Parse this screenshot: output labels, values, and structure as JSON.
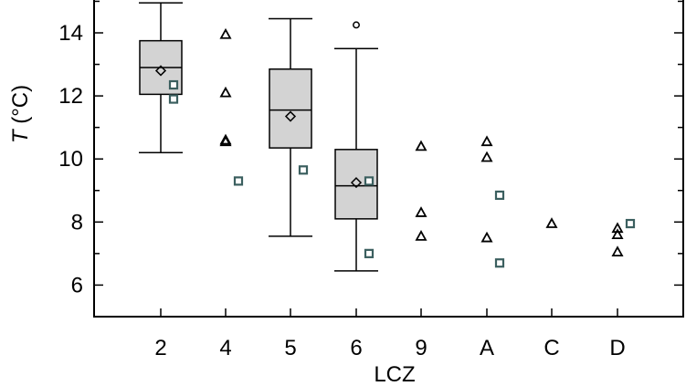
{
  "chart_data": {
    "type": "box",
    "xlabel": "LCZ",
    "ylabel_symbol": "T",
    "ylabel_unit": " (°C)",
    "categories": [
      "2",
      "4",
      "5",
      "6",
      "9",
      "A",
      "C",
      "D"
    ],
    "ylim": [
      5,
      15
    ],
    "yticks": [
      6,
      8,
      10,
      12,
      14
    ],
    "grid": false,
    "legend": "none",
    "boxes": [
      {
        "category": "2",
        "min": 10.2,
        "q1": 12.05,
        "median": 12.9,
        "q3": 13.75,
        "max": 14.95,
        "mean": 12.8,
        "outliers": []
      },
      {
        "category": "5",
        "min": 7.55,
        "q1": 10.35,
        "median": 11.55,
        "q3": 12.85,
        "max": 14.45,
        "mean": 11.35,
        "outliers": []
      },
      {
        "category": "6",
        "min": 6.45,
        "q1": 8.1,
        "median": 9.15,
        "q3": 10.3,
        "max": 13.5,
        "mean": 9.25,
        "outliers": [
          14.25
        ]
      }
    ],
    "triangles": [
      {
        "category": "4",
        "values": [
          13.95,
          12.1,
          10.6,
          10.55
        ]
      },
      {
        "category": "9",
        "values": [
          10.4,
          8.3,
          7.55
        ]
      },
      {
        "category": "A",
        "values": [
          10.55,
          10.05,
          7.5
        ]
      },
      {
        "category": "C",
        "values": [
          7.95
        ]
      },
      {
        "category": "D",
        "values": [
          7.8,
          7.6,
          7.05
        ]
      }
    ],
    "squares": [
      {
        "category": "2",
        "values": [
          12.35,
          11.9
        ]
      },
      {
        "category": "4",
        "values": [
          9.3
        ]
      },
      {
        "category": "5",
        "values": [
          9.65
        ]
      },
      {
        "category": "6",
        "values": [
          9.3,
          7.0
        ]
      },
      {
        "category": "A",
        "values": [
          8.85,
          6.7
        ]
      },
      {
        "category": "D",
        "values": [
          7.95
        ]
      }
    ],
    "colors": {
      "axis": "#000000",
      "box_fill": "#d3d3d3",
      "square": "#3b5f5f",
      "marker": "#000000"
    }
  }
}
